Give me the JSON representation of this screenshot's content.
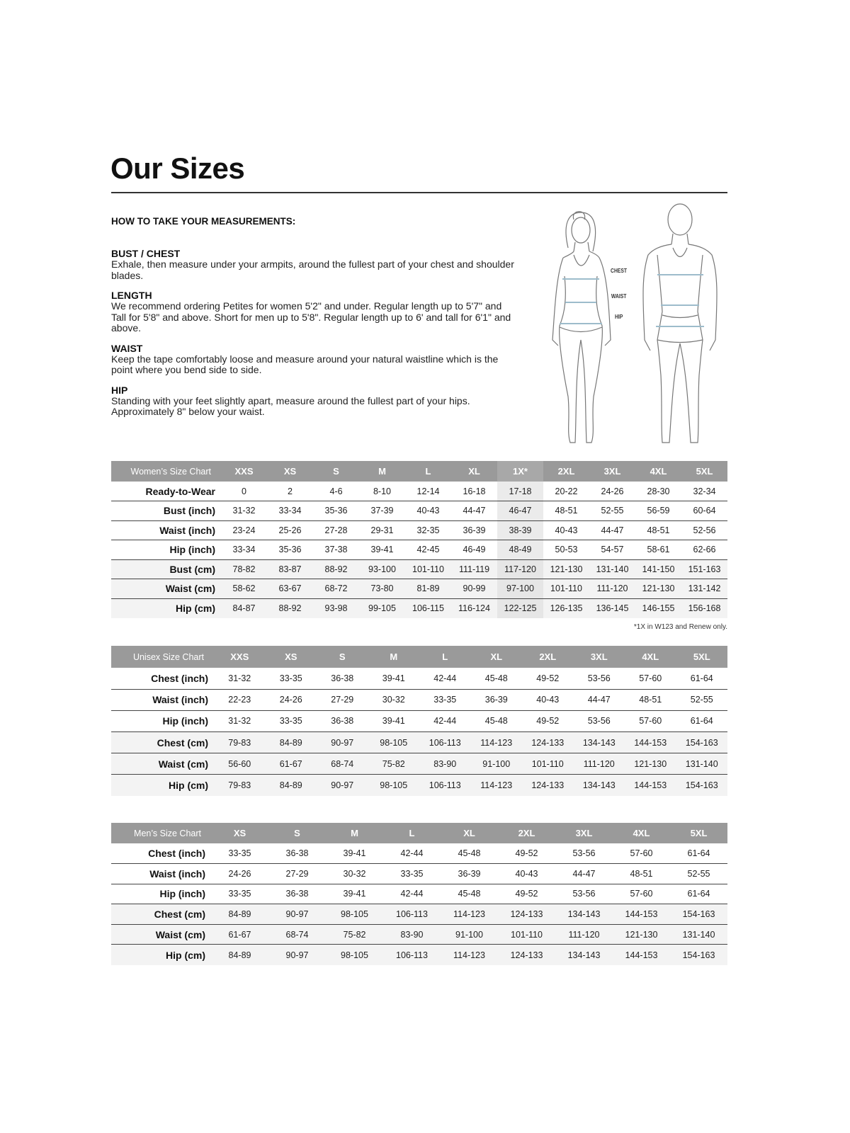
{
  "title": "Our Sizes",
  "how_to_heading": "HOW TO TAKE YOUR MEASUREMENTS:",
  "sections": [
    {
      "heading": "BUST / CHEST",
      "text": "Exhale, then measure under your armpits, around the fullest part of your chest and shoulder blades."
    },
    {
      "heading": "LENGTH",
      "text": "We recommend ordering Petites for women 5'2\" and under. Regular length up to 5'7\" and Tall for 5'8\" and above. Short for men up to 5'8\". Regular length up to 6' and tall for 6'1\" and above."
    },
    {
      "heading": "WAIST",
      "text": "Keep the tape comfortably loose and measure around your natural waistline which is the point where you bend side to side."
    },
    {
      "heading": "HIP",
      "text": "Standing with your feet slightly apart, measure around the fullest part of your hips. Approximately 8\" below your waist."
    }
  ],
  "figure_labels": {
    "chest": "CHEST",
    "waist": "WAIST",
    "hip": "HIP"
  },
  "colors": {
    "header_bg": "#9a9a9a",
    "measure_line": "#9dbccb",
    "cm_row_bg": "#f3f3f3",
    "highlight_col": "#ebebeb"
  },
  "tables": {
    "women": {
      "title": "Women’s Size Chart",
      "highlight_column": "1X*",
      "sizes": [
        "XXS",
        "XS",
        "S",
        "M",
        "L",
        "XL",
        "1X*",
        "2XL",
        "3XL",
        "4XL",
        "5XL"
      ],
      "rows": [
        {
          "label": "Ready-to-Wear",
          "values": [
            "0",
            "2",
            "4-6",
            "8-10",
            "12-14",
            "16-18",
            "17-18",
            "20-22",
            "24-26",
            "28-30",
            "32-34"
          ]
        },
        {
          "label": "Bust (inch)",
          "values": [
            "31-32",
            "33-34",
            "35-36",
            "37-39",
            "40-43",
            "44-47",
            "46-47",
            "48-51",
            "52-55",
            "56-59",
            "60-64"
          ]
        },
        {
          "label": "Waist (inch)",
          "values": [
            "23-24",
            "25-26",
            "27-28",
            "29-31",
            "32-35",
            "36-39",
            "38-39",
            "40-43",
            "44-47",
            "48-51",
            "52-56"
          ]
        },
        {
          "label": "Hip (inch)",
          "values": [
            "33-34",
            "35-36",
            "37-38",
            "39-41",
            "42-45",
            "46-49",
            "48-49",
            "50-53",
            "54-57",
            "58-61",
            "62-66"
          ]
        },
        {
          "label": "Bust (cm)",
          "values": [
            "78-82",
            "83-87",
            "88-92",
            "93-100",
            "101-110",
            "111-119",
            "117-120",
            "121-130",
            "131-140",
            "141-150",
            "151-163"
          ]
        },
        {
          "label": "Waist (cm)",
          "values": [
            "58-62",
            "63-67",
            "68-72",
            "73-80",
            "81-89",
            "90-99",
            "97-100",
            "101-110",
            "111-120",
            "121-130",
            "131-142"
          ]
        },
        {
          "label": "Hip (cm)",
          "values": [
            "84-87",
            "88-92",
            "93-98",
            "99-105",
            "106-115",
            "116-124",
            "122-125",
            "126-135",
            "136-145",
            "146-155",
            "156-168"
          ]
        }
      ],
      "note": "*1X in W123 and Renew only."
    },
    "unisex": {
      "title": "Unisex Size Chart",
      "sizes": [
        "XXS",
        "XS",
        "S",
        "M",
        "L",
        "XL",
        "2XL",
        "3XL",
        "4XL",
        "5XL"
      ],
      "rows": [
        {
          "label": "Chest (inch)",
          "values": [
            "31-32",
            "33-35",
            "36-38",
            "39-41",
            "42-44",
            "45-48",
            "49-52",
            "53-56",
            "57-60",
            "61-64"
          ]
        },
        {
          "label": "Waist (inch)",
          "values": [
            "22-23",
            "24-26",
            "27-29",
            "30-32",
            "33-35",
            "36-39",
            "40-43",
            "44-47",
            "48-51",
            "52-55"
          ]
        },
        {
          "label": "Hip (inch)",
          "values": [
            "31-32",
            "33-35",
            "36-38",
            "39-41",
            "42-44",
            "45-48",
            "49-52",
            "53-56",
            "57-60",
            "61-64"
          ]
        },
        {
          "label": "Chest (cm)",
          "values": [
            "79-83",
            "84-89",
            "90-97",
            "98-105",
            "106-113",
            "114-123",
            "124-133",
            "134-143",
            "144-153",
            "154-163"
          ]
        },
        {
          "label": "Waist (cm)",
          "values": [
            "56-60",
            "61-67",
            "68-74",
            "75-82",
            "83-90",
            "91-100",
            "101-110",
            "111-120",
            "121-130",
            "131-140"
          ]
        },
        {
          "label": "Hip (cm)",
          "values": [
            "79-83",
            "84-89",
            "90-97",
            "98-105",
            "106-113",
            "114-123",
            "124-133",
            "134-143",
            "144-153",
            "154-163"
          ]
        }
      ]
    },
    "men": {
      "title": "Men’s Size Chart",
      "sizes": [
        "XS",
        "S",
        "M",
        "L",
        "XL",
        "2XL",
        "3XL",
        "4XL",
        "5XL"
      ],
      "rows": [
        {
          "label": "Chest (inch)",
          "values": [
            "33-35",
            "36-38",
            "39-41",
            "42-44",
            "45-48",
            "49-52",
            "53-56",
            "57-60",
            "61-64"
          ]
        },
        {
          "label": "Waist (inch)",
          "values": [
            "24-26",
            "27-29",
            "30-32",
            "33-35",
            "36-39",
            "40-43",
            "44-47",
            "48-51",
            "52-55"
          ]
        },
        {
          "label": "Hip (inch)",
          "values": [
            "33-35",
            "36-38",
            "39-41",
            "42-44",
            "45-48",
            "49-52",
            "53-56",
            "57-60",
            "61-64"
          ]
        },
        {
          "label": "Chest (cm)",
          "values": [
            "84-89",
            "90-97",
            "98-105",
            "106-113",
            "114-123",
            "124-133",
            "134-143",
            "144-153",
            "154-163"
          ]
        },
        {
          "label": "Waist (cm)",
          "values": [
            "61-67",
            "68-74",
            "75-82",
            "83-90",
            "91-100",
            "101-110",
            "111-120",
            "121-130",
            "131-140"
          ]
        },
        {
          "label": "Hip (cm)",
          "values": [
            "84-89",
            "90-97",
            "98-105",
            "106-113",
            "114-123",
            "124-133",
            "134-143",
            "144-153",
            "154-163"
          ]
        }
      ]
    }
  }
}
